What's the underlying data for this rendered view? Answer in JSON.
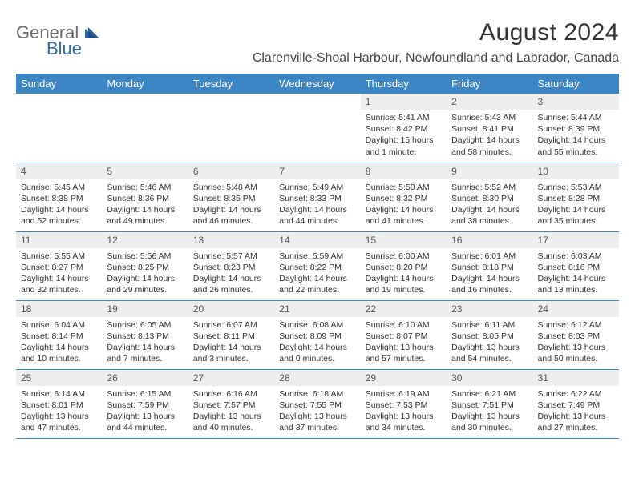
{
  "logo": {
    "text1": "General",
    "text2": "Blue"
  },
  "title": "August 2024",
  "location": "Clarenville-Shoal Harbour, Newfoundland and Labrador, Canada",
  "colors": {
    "header_bg": "#3d86c6",
    "header_text": "#ffffff",
    "daynum_bg": "#eceeef",
    "rule": "#3d86c6",
    "title_color": "#333333",
    "body_text": "#333333"
  },
  "weekdays": [
    "Sunday",
    "Monday",
    "Tuesday",
    "Wednesday",
    "Thursday",
    "Friday",
    "Saturday"
  ],
  "weeks": [
    [
      {
        "n": "",
        "sr": "",
        "ss": "",
        "dl": ""
      },
      {
        "n": "",
        "sr": "",
        "ss": "",
        "dl": ""
      },
      {
        "n": "",
        "sr": "",
        "ss": "",
        "dl": ""
      },
      {
        "n": "",
        "sr": "",
        "ss": "",
        "dl": ""
      },
      {
        "n": "1",
        "sr": "Sunrise: 5:41 AM",
        "ss": "Sunset: 8:42 PM",
        "dl": "Daylight: 15 hours and 1 minute."
      },
      {
        "n": "2",
        "sr": "Sunrise: 5:43 AM",
        "ss": "Sunset: 8:41 PM",
        "dl": "Daylight: 14 hours and 58 minutes."
      },
      {
        "n": "3",
        "sr": "Sunrise: 5:44 AM",
        "ss": "Sunset: 8:39 PM",
        "dl": "Daylight: 14 hours and 55 minutes."
      }
    ],
    [
      {
        "n": "4",
        "sr": "Sunrise: 5:45 AM",
        "ss": "Sunset: 8:38 PM",
        "dl": "Daylight: 14 hours and 52 minutes."
      },
      {
        "n": "5",
        "sr": "Sunrise: 5:46 AM",
        "ss": "Sunset: 8:36 PM",
        "dl": "Daylight: 14 hours and 49 minutes."
      },
      {
        "n": "6",
        "sr": "Sunrise: 5:48 AM",
        "ss": "Sunset: 8:35 PM",
        "dl": "Daylight: 14 hours and 46 minutes."
      },
      {
        "n": "7",
        "sr": "Sunrise: 5:49 AM",
        "ss": "Sunset: 8:33 PM",
        "dl": "Daylight: 14 hours and 44 minutes."
      },
      {
        "n": "8",
        "sr": "Sunrise: 5:50 AM",
        "ss": "Sunset: 8:32 PM",
        "dl": "Daylight: 14 hours and 41 minutes."
      },
      {
        "n": "9",
        "sr": "Sunrise: 5:52 AM",
        "ss": "Sunset: 8:30 PM",
        "dl": "Daylight: 14 hours and 38 minutes."
      },
      {
        "n": "10",
        "sr": "Sunrise: 5:53 AM",
        "ss": "Sunset: 8:28 PM",
        "dl": "Daylight: 14 hours and 35 minutes."
      }
    ],
    [
      {
        "n": "11",
        "sr": "Sunrise: 5:55 AM",
        "ss": "Sunset: 8:27 PM",
        "dl": "Daylight: 14 hours and 32 minutes."
      },
      {
        "n": "12",
        "sr": "Sunrise: 5:56 AM",
        "ss": "Sunset: 8:25 PM",
        "dl": "Daylight: 14 hours and 29 minutes."
      },
      {
        "n": "13",
        "sr": "Sunrise: 5:57 AM",
        "ss": "Sunset: 8:23 PM",
        "dl": "Daylight: 14 hours and 26 minutes."
      },
      {
        "n": "14",
        "sr": "Sunrise: 5:59 AM",
        "ss": "Sunset: 8:22 PM",
        "dl": "Daylight: 14 hours and 22 minutes."
      },
      {
        "n": "15",
        "sr": "Sunrise: 6:00 AM",
        "ss": "Sunset: 8:20 PM",
        "dl": "Daylight: 14 hours and 19 minutes."
      },
      {
        "n": "16",
        "sr": "Sunrise: 6:01 AM",
        "ss": "Sunset: 8:18 PM",
        "dl": "Daylight: 14 hours and 16 minutes."
      },
      {
        "n": "17",
        "sr": "Sunrise: 6:03 AM",
        "ss": "Sunset: 8:16 PM",
        "dl": "Daylight: 14 hours and 13 minutes."
      }
    ],
    [
      {
        "n": "18",
        "sr": "Sunrise: 6:04 AM",
        "ss": "Sunset: 8:14 PM",
        "dl": "Daylight: 14 hours and 10 minutes."
      },
      {
        "n": "19",
        "sr": "Sunrise: 6:05 AM",
        "ss": "Sunset: 8:13 PM",
        "dl": "Daylight: 14 hours and 7 minutes."
      },
      {
        "n": "20",
        "sr": "Sunrise: 6:07 AM",
        "ss": "Sunset: 8:11 PM",
        "dl": "Daylight: 14 hours and 3 minutes."
      },
      {
        "n": "21",
        "sr": "Sunrise: 6:08 AM",
        "ss": "Sunset: 8:09 PM",
        "dl": "Daylight: 14 hours and 0 minutes."
      },
      {
        "n": "22",
        "sr": "Sunrise: 6:10 AM",
        "ss": "Sunset: 8:07 PM",
        "dl": "Daylight: 13 hours and 57 minutes."
      },
      {
        "n": "23",
        "sr": "Sunrise: 6:11 AM",
        "ss": "Sunset: 8:05 PM",
        "dl": "Daylight: 13 hours and 54 minutes."
      },
      {
        "n": "24",
        "sr": "Sunrise: 6:12 AM",
        "ss": "Sunset: 8:03 PM",
        "dl": "Daylight: 13 hours and 50 minutes."
      }
    ],
    [
      {
        "n": "25",
        "sr": "Sunrise: 6:14 AM",
        "ss": "Sunset: 8:01 PM",
        "dl": "Daylight: 13 hours and 47 minutes."
      },
      {
        "n": "26",
        "sr": "Sunrise: 6:15 AM",
        "ss": "Sunset: 7:59 PM",
        "dl": "Daylight: 13 hours and 44 minutes."
      },
      {
        "n": "27",
        "sr": "Sunrise: 6:16 AM",
        "ss": "Sunset: 7:57 PM",
        "dl": "Daylight: 13 hours and 40 minutes."
      },
      {
        "n": "28",
        "sr": "Sunrise: 6:18 AM",
        "ss": "Sunset: 7:55 PM",
        "dl": "Daylight: 13 hours and 37 minutes."
      },
      {
        "n": "29",
        "sr": "Sunrise: 6:19 AM",
        "ss": "Sunset: 7:53 PM",
        "dl": "Daylight: 13 hours and 34 minutes."
      },
      {
        "n": "30",
        "sr": "Sunrise: 6:21 AM",
        "ss": "Sunset: 7:51 PM",
        "dl": "Daylight: 13 hours and 30 minutes."
      },
      {
        "n": "31",
        "sr": "Sunrise: 6:22 AM",
        "ss": "Sunset: 7:49 PM",
        "dl": "Daylight: 13 hours and 27 minutes."
      }
    ]
  ]
}
